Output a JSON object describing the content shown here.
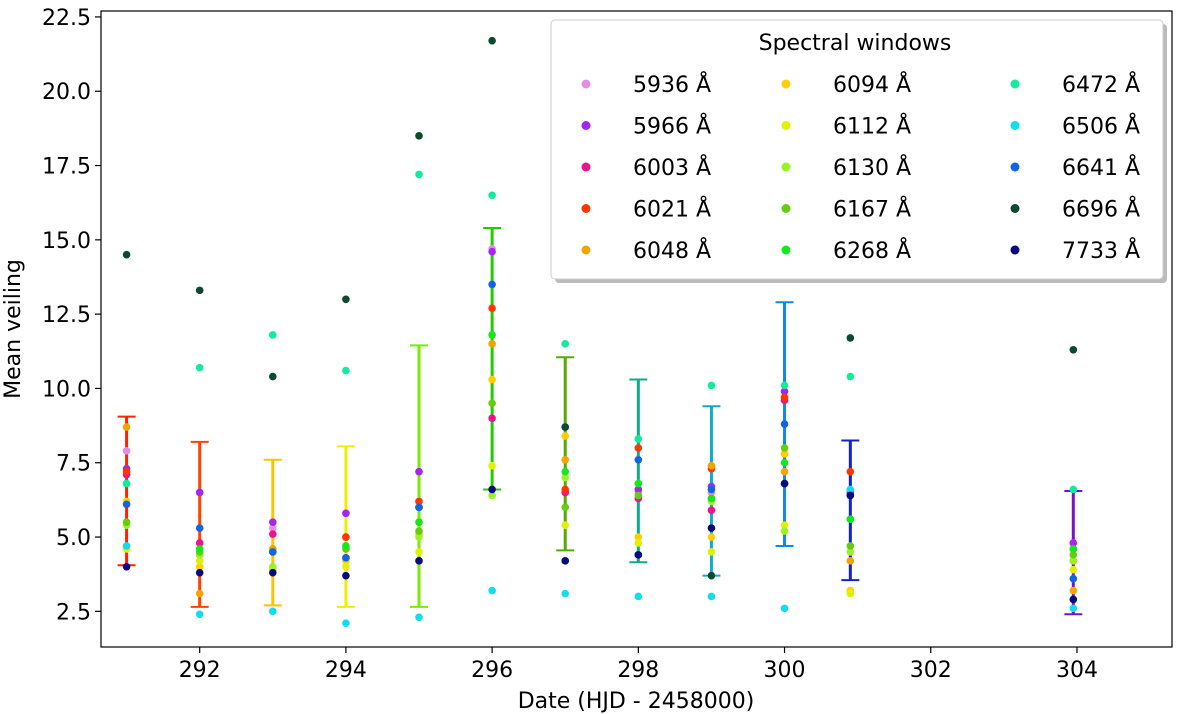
{
  "chart_data": {
    "type": "scatter",
    "xlabel": "Date (HJD - 2458000)",
    "ylabel": "Mean veiling",
    "xlim": [
      290.65,
      305.3
    ],
    "ylim": [
      1.3,
      22.7
    ],
    "xticks": [
      292,
      294,
      296,
      298,
      300,
      302,
      304
    ],
    "yticks": [
      2.5,
      5.0,
      7.5,
      10.0,
      12.5,
      15.0,
      17.5,
      20.0,
      22.5
    ],
    "grid": false,
    "legend": {
      "title": "Spectral windows",
      "placement": "top-right",
      "ncol": 3
    },
    "dates": [
      291.0,
      292.0,
      293.0,
      294.0,
      295.0,
      296.0,
      297.0,
      298.0,
      299.0,
      300.0,
      300.9,
      303.95
    ],
    "errorbars": [
      {
        "x": 291.0,
        "mean": 6.55,
        "low": 4.05,
        "high": 9.05,
        "color": "#ff2200"
      },
      {
        "x": 292.0,
        "mean": 5.45,
        "low": 2.65,
        "high": 8.2,
        "color": "#ff4400"
      },
      {
        "x": 293.0,
        "mean": 5.15,
        "low": 2.7,
        "high": 7.6,
        "color": "#ffc400"
      },
      {
        "x": 294.0,
        "mean": 5.35,
        "low": 2.65,
        "high": 8.05,
        "color": "#eeee00"
      },
      {
        "x": 295.0,
        "mean": 7.05,
        "low": 2.65,
        "high": 11.45,
        "color": "#77ee00"
      },
      {
        "x": 296.0,
        "mean": 11.0,
        "low": 6.6,
        "high": 15.4,
        "color": "#22cc00"
      },
      {
        "x": 297.0,
        "mean": 7.8,
        "low": 4.55,
        "high": 11.05,
        "color": "#55aa00"
      },
      {
        "x": 298.0,
        "mean": 7.2,
        "low": 4.15,
        "high": 10.3,
        "color": "#11aa88"
      },
      {
        "x": 299.0,
        "mean": 6.55,
        "low": 3.7,
        "high": 9.4,
        "color": "#11aacc"
      },
      {
        "x": 300.0,
        "mean": 8.8,
        "low": 4.7,
        "high": 12.9,
        "color": "#1188dd"
      },
      {
        "x": 300.9,
        "mean": 5.9,
        "low": 3.55,
        "high": 8.25,
        "color": "#1122cc"
      },
      {
        "x": 303.95,
        "mean": 4.45,
        "low": 2.4,
        "high": 6.55,
        "color": "#7711cc"
      }
    ],
    "series": [
      {
        "name": "5936 Å",
        "color": "#e38ce8",
        "values": [
          7.9,
          6.5,
          5.3,
          5.8,
          7.2,
          14.7,
          8.7,
          6.5,
          6.5,
          7.8,
          6.5,
          4.8
        ]
      },
      {
        "name": "5966 Å",
        "color": "#a626f0",
        "values": [
          7.3,
          6.5,
          5.5,
          5.8,
          7.2,
          14.6,
          6.5,
          6.6,
          6.7,
          9.9,
          6.5,
          4.8
        ]
      },
      {
        "name": "6003 Å",
        "color": "#f0128c",
        "values": [
          7.1,
          4.8,
          5.1,
          5.0,
          6.0,
          9.0,
          6.5,
          6.3,
          5.9,
          9.6,
          5.6,
          4.6
        ]
      },
      {
        "name": "6021 Å",
        "color": "#ff3600",
        "values": [
          7.2,
          4.4,
          3.9,
          5.0,
          6.2,
          12.7,
          6.6,
          8.0,
          7.3,
          9.7,
          7.2,
          4.2
        ]
      },
      {
        "name": "6048 Å",
        "color": "#f5a300",
        "values": [
          8.7,
          3.1,
          4.6,
          4.3,
          5.5,
          11.5,
          7.6,
          7.6,
          7.4,
          7.2,
          4.2,
          3.2
        ]
      },
      {
        "name": "6094 Å",
        "color": "#ffcf00",
        "values": [
          6.2,
          4.0,
          4.5,
          4.2,
          5.1,
          10.3,
          8.4,
          5.0,
          5.0,
          7.8,
          3.2,
          3.6
        ]
      },
      {
        "name": "6112 Å",
        "color": "#e0f200",
        "values": [
          4.6,
          4.2,
          3.9,
          4.0,
          4.5,
          7.4,
          5.4,
          4.8,
          4.5,
          5.4,
          3.1,
          3.9
        ]
      },
      {
        "name": "6130 Å",
        "color": "#9bf227",
        "values": [
          5.4,
          4.4,
          4.0,
          4.6,
          5.0,
          6.4,
          7.0,
          6.8,
          6.2,
          5.2,
          4.5,
          4.2
        ]
      },
      {
        "name": "6167 Å",
        "color": "#66cc11",
        "values": [
          5.5,
          4.5,
          4.5,
          4.6,
          5.2,
          9.5,
          6.0,
          6.4,
          6.3,
          8.0,
          4.7,
          4.4
        ]
      },
      {
        "name": "6268 Å",
        "color": "#13e81a",
        "values": [
          6.8,
          4.6,
          4.5,
          4.7,
          5.5,
          11.8,
          7.2,
          6.8,
          6.3,
          7.5,
          5.6,
          4.6
        ]
      },
      {
        "name": "6472 Å",
        "color": "#13eb9c",
        "values": [
          6.8,
          10.7,
          11.8,
          10.6,
          17.2,
          16.5,
          11.5,
          8.3,
          10.1,
          10.1,
          10.4,
          6.6
        ]
      },
      {
        "name": "6506 Å",
        "color": "#14dcf0",
        "values": [
          4.7,
          2.4,
          2.5,
          2.1,
          2.3,
          3.2,
          3.1,
          3.0,
          3.0,
          2.6,
          6.6,
          2.6
        ]
      },
      {
        "name": "6641 Å",
        "color": "#1263e6",
        "values": [
          6.1,
          5.3,
          4.5,
          4.3,
          6.0,
          13.5,
          8.7,
          7.6,
          6.6,
          8.8,
          6.4,
          3.6
        ]
      },
      {
        "name": "6696 Å",
        "color": "#0b4a2e",
        "values": [
          14.5,
          13.3,
          10.4,
          13.0,
          18.5,
          21.7,
          8.7,
          4.4,
          3.7,
          6.8,
          11.7,
          11.3
        ]
      },
      {
        "name": "7733 Å",
        "color": "#0a0a80",
        "values": [
          4.0,
          3.8,
          3.8,
          3.7,
          4.2,
          6.6,
          4.2,
          4.4,
          5.3,
          6.8,
          6.4,
          2.9
        ]
      }
    ]
  }
}
